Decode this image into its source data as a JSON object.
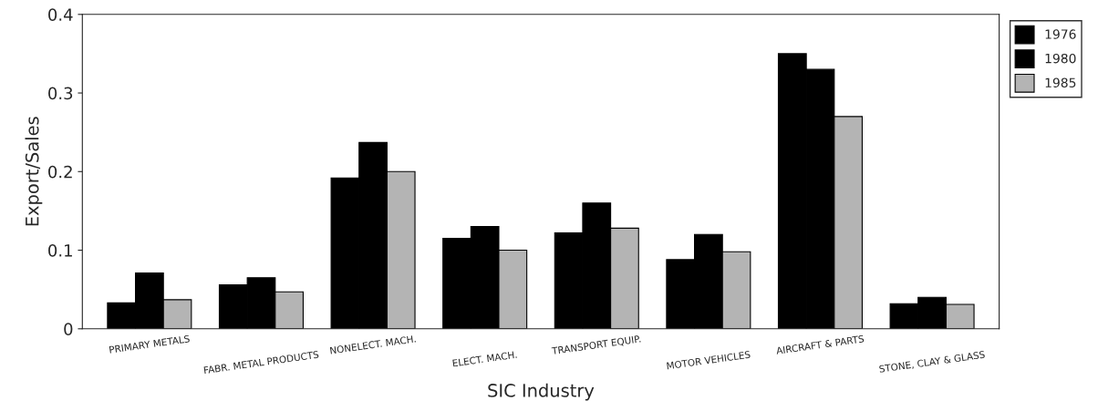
{
  "chart_data": {
    "type": "bar",
    "xlabel": "SIC Industry",
    "ylabel": "Export/Sales",
    "categories": [
      "PRIMARY METALS",
      "FABR. METAL PRODUCTS",
      "NONELECT. MACH.",
      "ELECT. MACH.",
      "TRANSPORT EQUIP.",
      "MOTOR VEHICLES",
      "AIRCRAFT & PARTS",
      "STONE, CLAY & GLASS"
    ],
    "series": [
      {
        "name": "1976",
        "color": "#000000",
        "values": [
          0.033,
          0.056,
          0.192,
          0.115,
          0.122,
          0.088,
          0.35,
          0.032
        ]
      },
      {
        "name": "1980",
        "color": "#000000",
        "values": [
          0.071,
          0.065,
          0.237,
          0.13,
          0.16,
          0.12,
          0.33,
          0.04
        ]
      },
      {
        "name": "1985",
        "color": "#b4b4b4",
        "values": [
          0.037,
          0.047,
          0.2,
          0.1,
          0.128,
          0.098,
          0.27,
          0.031
        ]
      }
    ],
    "ylim": [
      0,
      0.4
    ],
    "yticks": [
      0,
      0.1,
      0.2,
      0.3,
      0.4
    ],
    "grid": false,
    "legend": "top right"
  }
}
